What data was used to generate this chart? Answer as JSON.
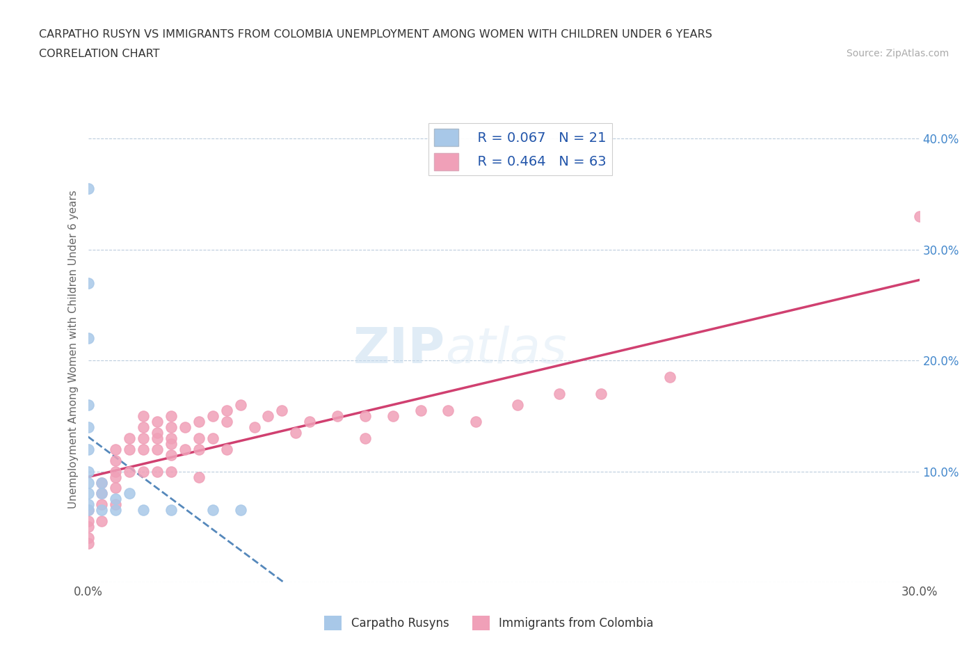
{
  "title_line1": "CARPATHO RUSYN VS IMMIGRANTS FROM COLOMBIA UNEMPLOYMENT AMONG WOMEN WITH CHILDREN UNDER 6 YEARS",
  "title_line2": "CORRELATION CHART",
  "source": "Source: ZipAtlas.com",
  "ylabel": "Unemployment Among Women with Children Under 6 years",
  "xlim": [
    0.0,
    0.3
  ],
  "ylim": [
    0.0,
    0.42
  ],
  "xticks": [
    0.0,
    0.05,
    0.1,
    0.15,
    0.2,
    0.25,
    0.3
  ],
  "yticks_right": [
    0.0,
    0.1,
    0.2,
    0.3,
    0.4
  ],
  "ytick_labels_right": [
    "",
    "10.0%",
    "20.0%",
    "30.0%",
    "40.0%"
  ],
  "color_rusyn": "#a8c8e8",
  "color_colombia": "#f0a0b8",
  "line_color_rusyn": "#5588bb",
  "line_color_colombia": "#d04070",
  "legend_R_rusyn": "R = 0.067",
  "legend_N_rusyn": "N = 21",
  "legend_R_colombia": "R = 0.464",
  "legend_N_colombia": "N = 63",
  "rusyn_x": [
    0.0,
    0.0,
    0.0,
    0.0,
    0.0,
    0.0,
    0.0,
    0.0,
    0.0,
    0.0,
    0.0,
    0.005,
    0.005,
    0.005,
    0.01,
    0.01,
    0.015,
    0.02,
    0.03,
    0.045,
    0.055
  ],
  "rusyn_y": [
    0.355,
    0.27,
    0.22,
    0.16,
    0.14,
    0.12,
    0.1,
    0.09,
    0.08,
    0.07,
    0.065,
    0.09,
    0.08,
    0.065,
    0.075,
    0.065,
    0.08,
    0.065,
    0.065,
    0.065,
    0.065
  ],
  "colombia_x": [
    0.0,
    0.0,
    0.0,
    0.0,
    0.0,
    0.005,
    0.005,
    0.005,
    0.005,
    0.01,
    0.01,
    0.01,
    0.01,
    0.01,
    0.01,
    0.015,
    0.015,
    0.015,
    0.02,
    0.02,
    0.02,
    0.02,
    0.02,
    0.025,
    0.025,
    0.025,
    0.025,
    0.025,
    0.03,
    0.03,
    0.03,
    0.03,
    0.03,
    0.03,
    0.035,
    0.035,
    0.04,
    0.04,
    0.04,
    0.04,
    0.045,
    0.045,
    0.05,
    0.05,
    0.05,
    0.055,
    0.06,
    0.065,
    0.07,
    0.075,
    0.08,
    0.09,
    0.1,
    0.1,
    0.11,
    0.12,
    0.13,
    0.14,
    0.155,
    0.17,
    0.185,
    0.21,
    0.3
  ],
  "colombia_y": [
    0.065,
    0.055,
    0.05,
    0.04,
    0.035,
    0.09,
    0.08,
    0.07,
    0.055,
    0.12,
    0.11,
    0.1,
    0.095,
    0.085,
    0.07,
    0.13,
    0.12,
    0.1,
    0.15,
    0.14,
    0.13,
    0.12,
    0.1,
    0.145,
    0.135,
    0.13,
    0.12,
    0.1,
    0.15,
    0.14,
    0.13,
    0.125,
    0.115,
    0.1,
    0.14,
    0.12,
    0.145,
    0.13,
    0.12,
    0.095,
    0.15,
    0.13,
    0.155,
    0.145,
    0.12,
    0.16,
    0.14,
    0.15,
    0.155,
    0.135,
    0.145,
    0.15,
    0.15,
    0.13,
    0.15,
    0.155,
    0.155,
    0.145,
    0.16,
    0.17,
    0.17,
    0.185,
    0.33
  ]
}
